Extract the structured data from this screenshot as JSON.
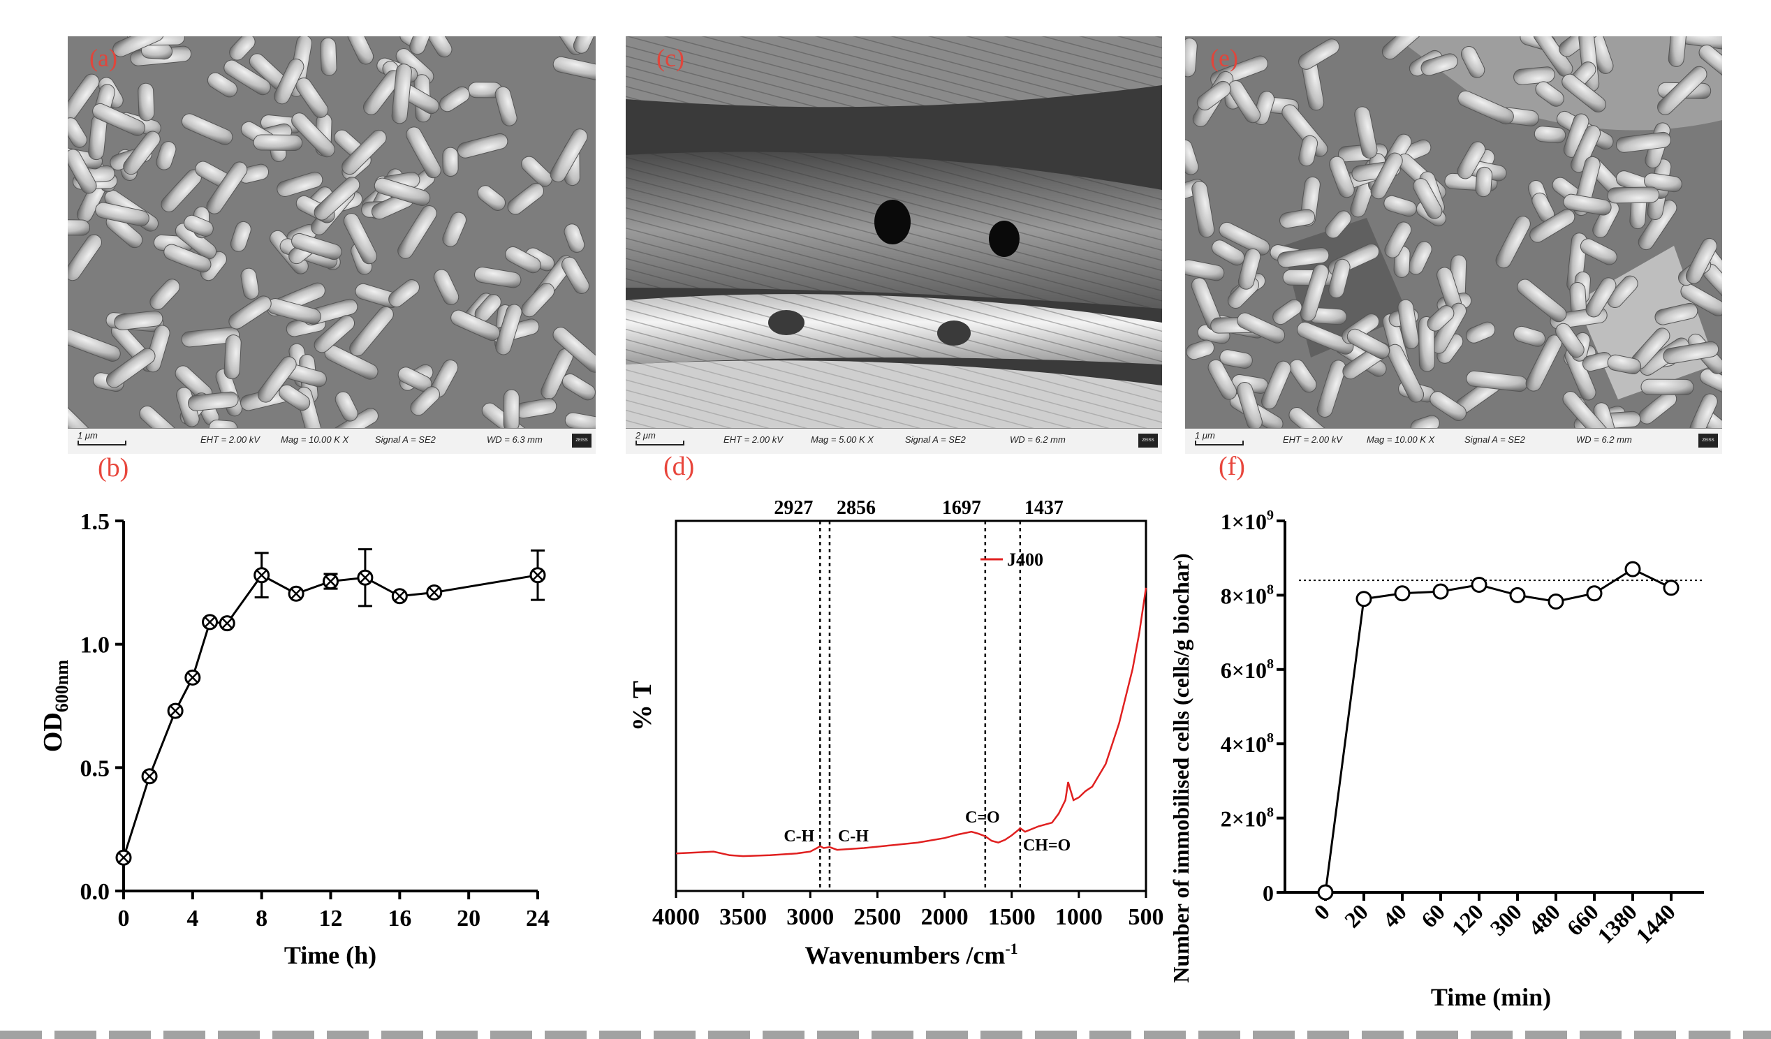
{
  "panel_labels": {
    "a": "(a)",
    "b": "(b)",
    "c": "(c)",
    "d": "(d)",
    "e": "(e)",
    "f": "(f)"
  },
  "sem_panels": [
    {
      "id": "a",
      "scale": "1 μm",
      "eht": "EHT =  2.00 kV",
      "mag": "Mag =   10.00 K X",
      "signal": "Signal A = SE2",
      "wd": "WD =  6.3 mm",
      "brand": "ZEISS",
      "texture": "rods"
    },
    {
      "id": "c",
      "scale": "2 μm",
      "eht": "EHT =  2.00 kV",
      "mag": "Mag =   5.00 K X",
      "signal": "Signal A = SE2",
      "wd": "WD =  6.2 mm",
      "brand": "ZEISS",
      "texture": "biochar"
    },
    {
      "id": "e",
      "scale": "1 μm",
      "eht": "EHT =  2.00 kV",
      "mag": "Mag =   10.00 K X",
      "signal": "Signal A = SE2",
      "wd": "WD =  6.2 mm",
      "brand": "ZEISS",
      "texture": "rods"
    }
  ],
  "chart_data": [
    {
      "id": "b",
      "type": "line",
      "xlabel": "Time (h)",
      "ylabel_main": "OD",
      "ylabel_sub": "600nm",
      "xlim": [
        0,
        24
      ],
      "ylim": [
        0,
        1.5
      ],
      "xticks": [
        0,
        4,
        8,
        12,
        16,
        20,
        24
      ],
      "yticks": [
        0.0,
        0.5,
        1.0,
        1.5
      ],
      "ytick_labels": [
        "0.0",
        "0.5",
        "1.0",
        "1.5"
      ],
      "x": [
        0,
        1.5,
        3,
        4,
        5,
        6,
        8,
        10,
        12,
        14,
        16,
        18,
        24
      ],
      "y": [
        0.135,
        0.465,
        0.73,
        0.865,
        1.09,
        1.085,
        1.28,
        1.205,
        1.255,
        1.27,
        1.195,
        1.21,
        1.28
      ],
      "err": [
        0.02,
        0,
        0,
        0,
        0,
        0,
        0.09,
        0,
        0.03,
        0.115,
        0,
        0,
        0.1
      ],
      "marker": "circle-x"
    },
    {
      "id": "d",
      "type": "line",
      "xlabel": "Wavenumbers /cm",
      "xlabel_sup": "-1",
      "ylabel": "% T",
      "xlim": [
        4000,
        500
      ],
      "xticks": [
        4000,
        3500,
        3000,
        2500,
        2000,
        1500,
        1000,
        500
      ],
      "series": [
        {
          "name": "J400",
          "color": "#e02020",
          "x": [
            4000,
            3850,
            3720,
            3600,
            3500,
            3300,
            3100,
            3000,
            2950,
            2927,
            2900,
            2856,
            2800,
            2600,
            2400,
            2200,
            2000,
            1900,
            1800,
            1750,
            1697,
            1650,
            1600,
            1550,
            1500,
            1450,
            1437,
            1400,
            1300,
            1250,
            1200,
            1150,
            1100,
            1080,
            1060,
            1040,
            1000,
            950,
            900,
            800,
            700,
            600,
            550,
            500
          ],
          "y": [
            6,
            7,
            8,
            4,
            3,
            4,
            6,
            8,
            12,
            14,
            12,
            13,
            10,
            12,
            15,
            18,
            23,
            27,
            30,
            28,
            25,
            20,
            18,
            21,
            26,
            32,
            34,
            30,
            36,
            38,
            40,
            50,
            65,
            85,
            75,
            65,
            68,
            75,
            80,
            105,
            150,
            210,
            250,
            300
          ]
        }
      ],
      "ylim": [
        0,
        340
      ],
      "vlines": [
        2927,
        2856,
        1697,
        1437
      ],
      "vline_labels": [
        "2927",
        "2856",
        "1697",
        "1437"
      ],
      "annotations": [
        "C-H",
        "C-H",
        "C=O",
        "CH=O"
      ]
    },
    {
      "id": "f",
      "type": "line",
      "xlabel": "Time (min)",
      "ylabel": "Number of immobilised cells (cells/g biochar)",
      "categories": [
        "0",
        "20",
        "40",
        "60",
        "120",
        "300",
        "480",
        "660",
        "1380",
        "1440"
      ],
      "values": [
        0,
        790000000,
        805000000,
        810000000,
        828000000,
        800000000,
        783000000,
        805000000,
        870000000,
        820000000
      ],
      "ylim": [
        0,
        1000000000
      ],
      "ytick_labels": [
        [
          "0",
          ""
        ],
        [
          "2×10",
          "8"
        ],
        [
          "4×10",
          "8"
        ],
        [
          "6×10",
          "8"
        ],
        [
          "8×10",
          "8"
        ],
        [
          "1×10",
          "9"
        ]
      ],
      "reference_line": 840000000,
      "marker": "open-circle"
    }
  ]
}
